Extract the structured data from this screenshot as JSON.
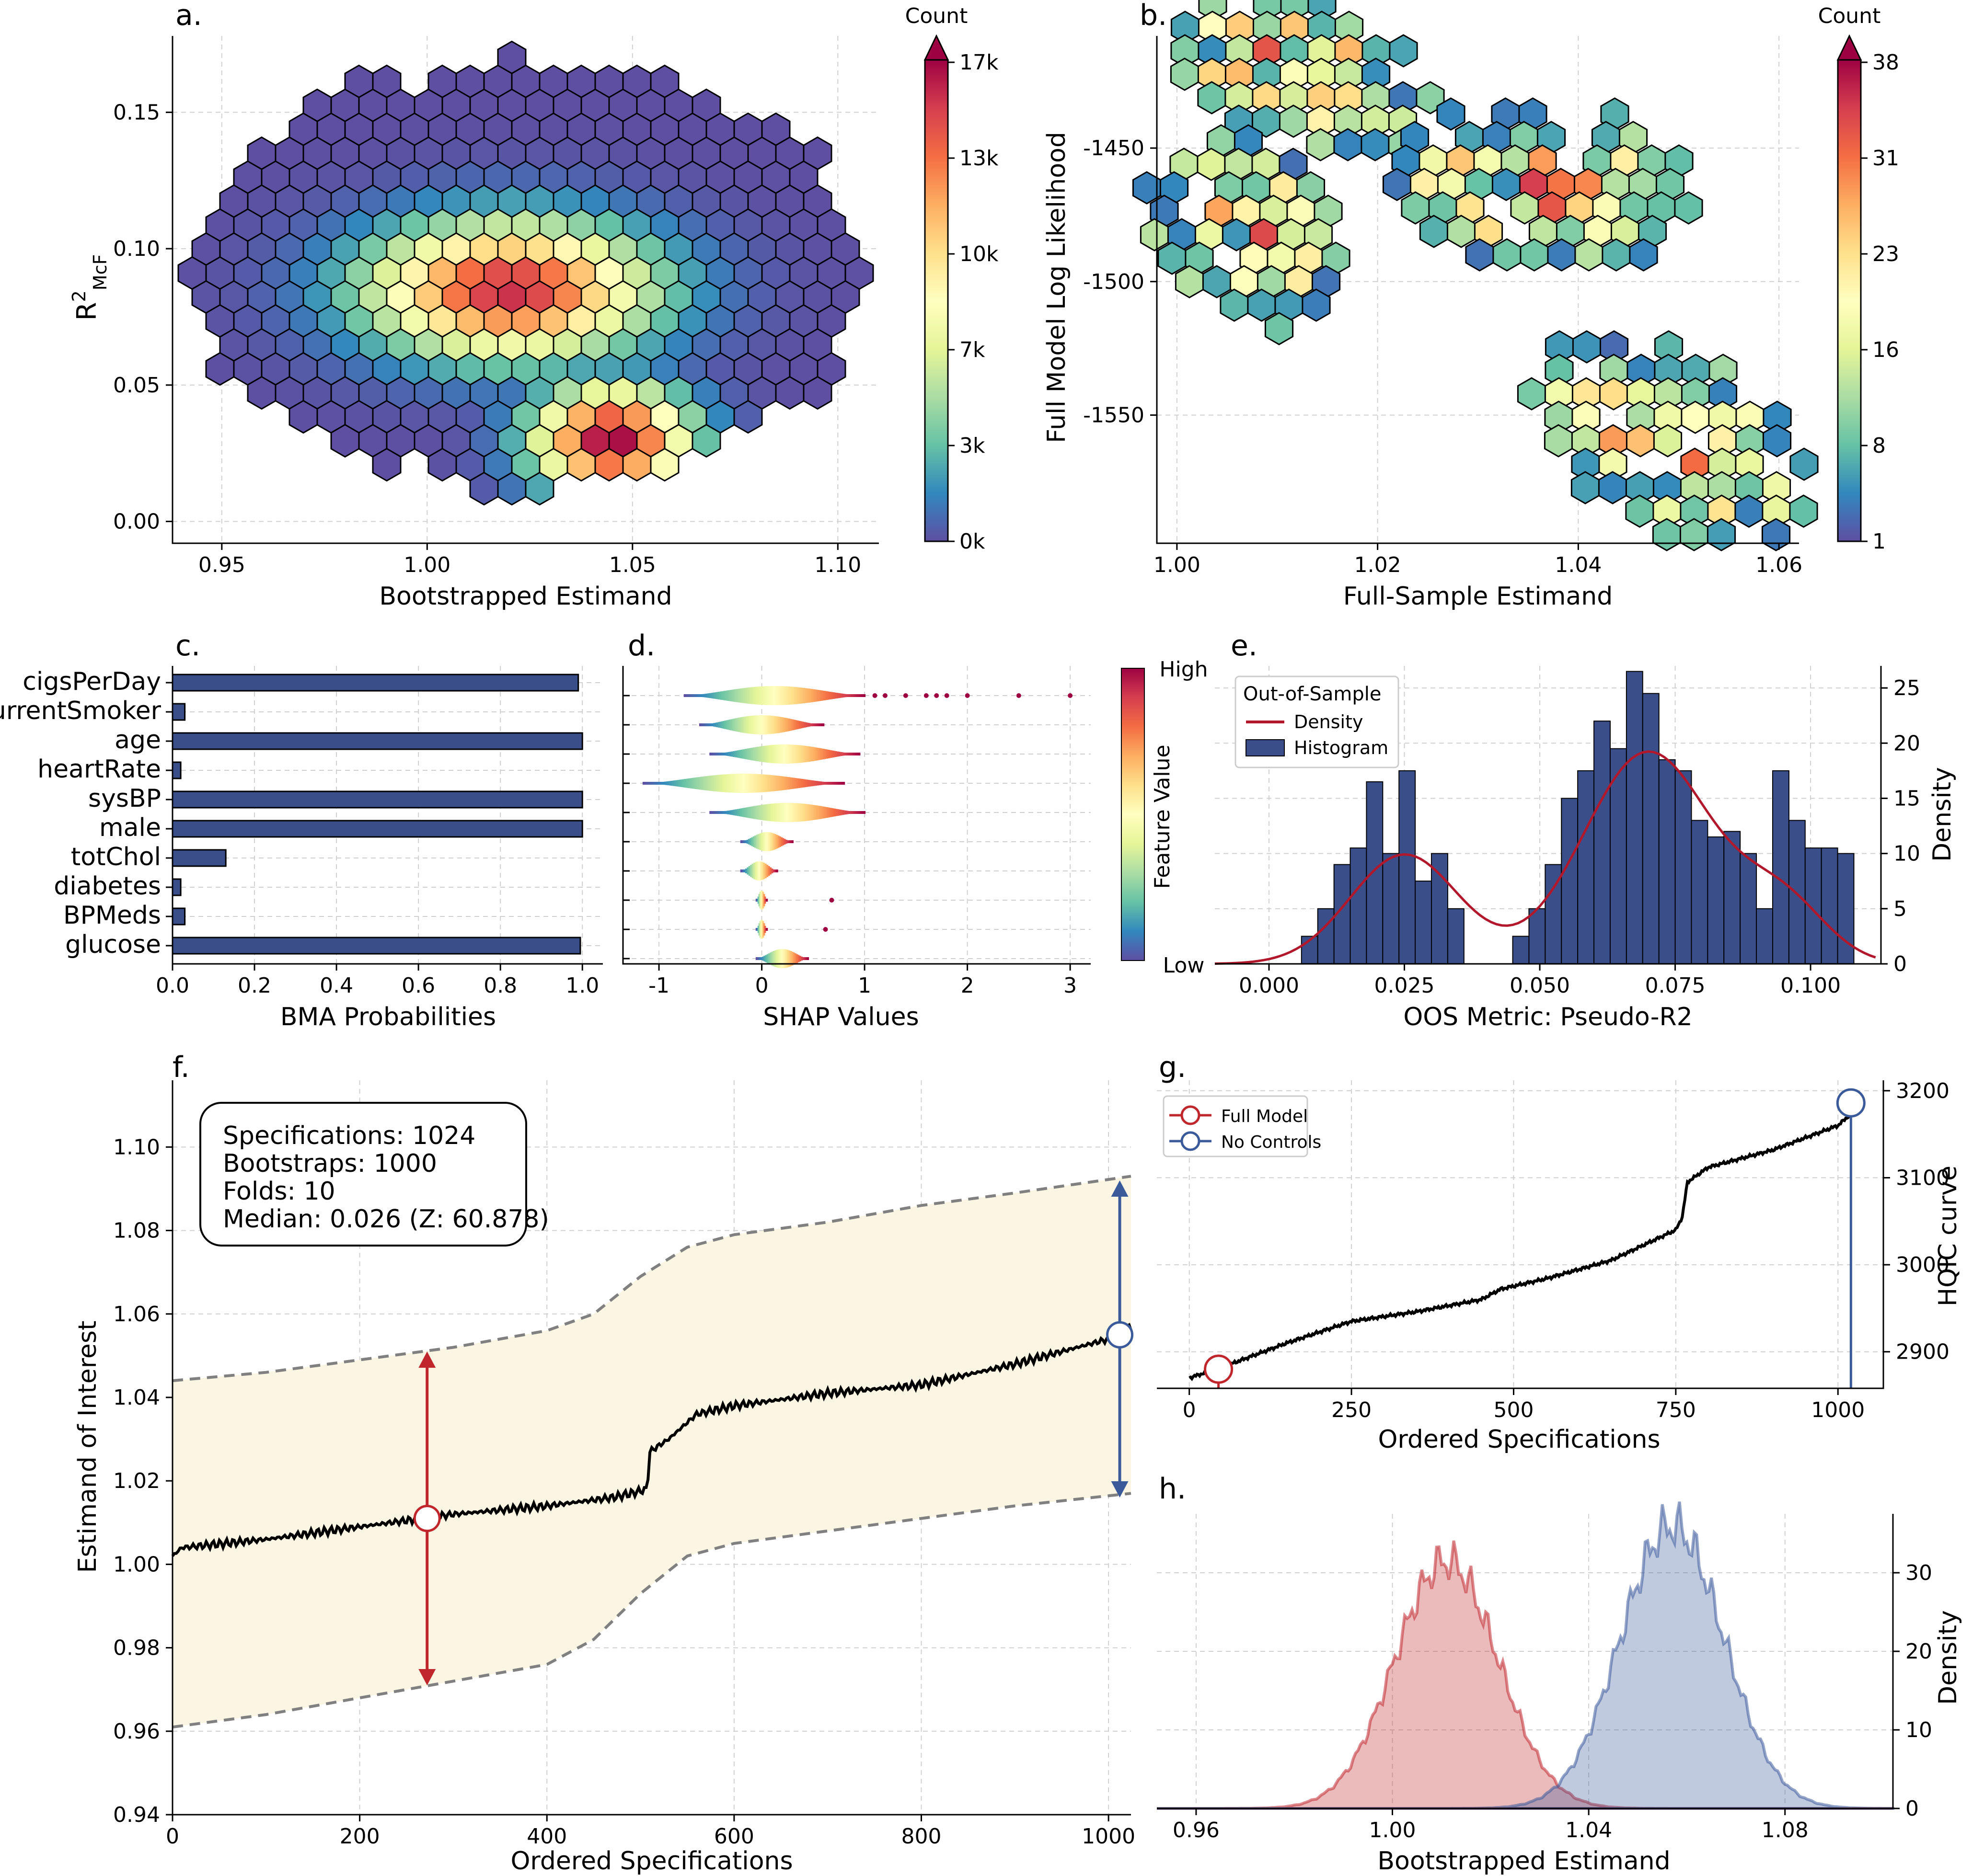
{
  "colors": {
    "bar": "#3a4f8a",
    "density_line": "#b2182b",
    "full_model": "#c0272d",
    "no_controls": "#3a5a9a",
    "band": "#fbf6e4",
    "spectral": [
      "#5e4fa2",
      "#3288bd",
      "#66c2a5",
      "#abdda4",
      "#e6f598",
      "#ffffbf",
      "#fee08b",
      "#fdae61",
      "#f46d43",
      "#d53e4f",
      "#9e0142"
    ]
  },
  "chart_data": [
    {
      "panel": "a.",
      "type": "heatmap",
      "xlabel": "Bootstrapped Estimand",
      "ylabel": "R²McF",
      "xticks": [
        "0.95",
        "1.00",
        "1.05",
        "1.10"
      ],
      "yticks": [
        "0.00",
        "0.05",
        "0.10",
        "0.15"
      ],
      "xlim": [
        0.938,
        1.11
      ],
      "ylim": [
        -0.008,
        0.178
      ],
      "colorbar_title": "Count",
      "colorbar_ticks": [
        "0k",
        "3k",
        "7k",
        "10k",
        "13k",
        "17k"
      ],
      "colorbar_max": 17000,
      "description_centers": [
        [
          1.045,
          0.03
        ],
        [
          1.02,
          0.085
        ]
      ]
    },
    {
      "panel": "b.",
      "type": "heatmap",
      "xlabel": "Full-Sample Estimand",
      "ylabel": "Full Model Log Likelihood",
      "xticks": [
        "1.00",
        "1.02",
        "1.04",
        "1.06"
      ],
      "yticks": [
        "-1450",
        "-1500",
        "-1550"
      ],
      "xlim": [
        0.998,
        1.062
      ],
      "ylim": [
        -1598,
        -1408
      ],
      "colorbar_title": "Count",
      "colorbar_ticks": [
        "1",
        "8",
        "16",
        "23",
        "31",
        "38"
      ],
      "colorbar_max": 38
    },
    {
      "panel": "c.",
      "type": "bar",
      "orientation": "horizontal",
      "xlabel": "BMA Probabilities",
      "categories": [
        "cigsPerDay",
        "currentSmoker",
        "age",
        "heartRate",
        "sysBP",
        "male",
        "totChol",
        "diabetes",
        "BPMeds",
        "glucose"
      ],
      "values": [
        0.99,
        0.03,
        1.0,
        0.02,
        1.0,
        1.0,
        0.13,
        0.02,
        0.03,
        0.995
      ],
      "xticks": [
        "0.0",
        "0.2",
        "0.4",
        "0.6",
        "0.8",
        "1.0"
      ],
      "xlim": [
        0,
        1.05
      ]
    },
    {
      "panel": "d.",
      "type": "scatter",
      "xlabel": "SHAP Values",
      "xticks": [
        "-1",
        "0",
        "1",
        "2",
        "3"
      ],
      "xlim": [
        -1.35,
        3.2
      ],
      "colorbar_label": "Feature Value",
      "colorbar_high": "High",
      "colorbar_low": "Low",
      "rows": [
        {
          "min": -0.75,
          "max": 1.0,
          "outliers": [
            1.1,
            1.2,
            1.4,
            1.6,
            1.7,
            1.8,
            2.0,
            2.5,
            3.0
          ]
        },
        {
          "min": -0.6,
          "max": 0.6,
          "outliers": []
        },
        {
          "min": -0.5,
          "max": 0.95,
          "outliers": []
        },
        {
          "min": -1.15,
          "max": 0.8,
          "outliers": []
        },
        {
          "min": -0.5,
          "max": 1.0,
          "outliers": []
        },
        {
          "min": -0.2,
          "max": 0.3,
          "outliers": []
        },
        {
          "min": -0.2,
          "max": 0.15,
          "outliers": []
        },
        {
          "min": -0.05,
          "max": 0.05,
          "outliers": [
            0.68
          ]
        },
        {
          "min": -0.05,
          "max": 0.05,
          "outliers": [
            0.62
          ]
        },
        {
          "min": -0.05,
          "max": 0.45,
          "outliers": []
        }
      ]
    },
    {
      "panel": "e.",
      "type": "bar",
      "xlabel": "OOS Metric: Pseudo-R2",
      "ylabel": "Density",
      "legend_title": "Out-of-Sample",
      "legend": [
        "Density",
        "Histogram"
      ],
      "xticks": [
        "0.000",
        "0.025",
        "0.050",
        "0.075",
        "0.100"
      ],
      "yticks": [
        "0",
        "5",
        "10",
        "15",
        "20",
        "25"
      ],
      "xlim": [
        -0.01,
        0.113
      ],
      "ylim": [
        0,
        27
      ],
      "bin_start": 0.006,
      "bin_width": 0.003,
      "values": [
        2.5,
        5,
        9,
        10.5,
        16.5,
        10,
        17.5,
        7.5,
        10,
        5,
        0,
        0,
        0,
        2.5,
        5,
        9,
        15,
        17.5,
        22,
        19.5,
        26.5,
        24.5,
        18.5,
        17.5,
        13,
        11.5,
        12,
        10,
        5,
        17.5,
        13,
        10.5,
        10.5,
        10
      ]
    },
    {
      "panel": "f.",
      "type": "line",
      "xlabel": "Ordered Specifications",
      "ylabel": "Estimand of Interest",
      "xticks": [
        "0",
        "200",
        "400",
        "600",
        "800",
        "1000"
      ],
      "yticks": [
        "0.94",
        "0.96",
        "0.98",
        "1.00",
        "1.02",
        "1.04",
        "1.06",
        "1.08",
        "1.10"
      ],
      "xlim": [
        0,
        1024
      ],
      "ylim": [
        0.94,
        1.116
      ],
      "median_curve": [
        [
          0,
          1.002
        ],
        [
          10,
          1.004
        ],
        [
          100,
          1.006
        ],
        [
          200,
          1.009
        ],
        [
          300,
          1.012
        ],
        [
          400,
          1.014
        ],
        [
          470,
          1.016
        ],
        [
          490,
          1.017
        ],
        [
          507,
          1.018
        ],
        [
          510,
          1.027
        ],
        [
          530,
          1.03
        ],
        [
          560,
          1.036
        ],
        [
          600,
          1.038
        ],
        [
          700,
          1.041
        ],
        [
          800,
          1.043
        ],
        [
          900,
          1.048
        ],
        [
          1000,
          1.054
        ],
        [
          1024,
          1.057
        ]
      ],
      "upper_band": [
        [
          0,
          1.044
        ],
        [
          100,
          1.046
        ],
        [
          200,
          1.049
        ],
        [
          300,
          1.052
        ],
        [
          400,
          1.056
        ],
        [
          450,
          1.06
        ],
        [
          500,
          1.069
        ],
        [
          550,
          1.076
        ],
        [
          600,
          1.079
        ],
        [
          700,
          1.082
        ],
        [
          800,
          1.086
        ],
        [
          900,
          1.089
        ],
        [
          1024,
          1.093
        ]
      ],
      "lower_band": [
        [
          0,
          0.961
        ],
        [
          100,
          0.964
        ],
        [
          200,
          0.968
        ],
        [
          300,
          0.972
        ],
        [
          400,
          0.976
        ],
        [
          450,
          0.982
        ],
        [
          500,
          0.993
        ],
        [
          550,
          1.002
        ],
        [
          600,
          1.005
        ],
        [
          700,
          1.008
        ],
        [
          800,
          1.011
        ],
        [
          900,
          1.014
        ],
        [
          1024,
          1.017
        ]
      ],
      "full_model": {
        "x": 272,
        "y": 1.011,
        "upper": 1.051,
        "lower": 0.971
      },
      "no_controls": {
        "x": 1012,
        "y": 1.055,
        "upper": 1.092,
        "lower": 1.016
      }
    },
    {
      "panel": "g.",
      "type": "line",
      "xlabel": "Ordered Specifications",
      "ylabel": "HQIC curve",
      "legend": [
        "Full Model",
        "No Controls"
      ],
      "xticks": [
        "0",
        "250",
        "500",
        "750",
        "1000"
      ],
      "yticks": [
        "2900",
        "3000",
        "3100",
        "3200"
      ],
      "xlim": [
        -50,
        1070
      ],
      "ylim": [
        2858,
        3212
      ],
      "curve": [
        [
          0,
          2870
        ],
        [
          50,
          2882
        ],
        [
          150,
          2910
        ],
        [
          250,
          2935
        ],
        [
          350,
          2946
        ],
        [
          450,
          2960
        ],
        [
          470,
          2968
        ],
        [
          480,
          2972
        ],
        [
          550,
          2984
        ],
        [
          650,
          3005
        ],
        [
          750,
          3040
        ],
        [
          760,
          3055
        ],
        [
          768,
          3095
        ],
        [
          800,
          3112
        ],
        [
          900,
          3132
        ],
        [
          1000,
          3160
        ],
        [
          1024,
          3176
        ]
      ],
      "full_model": {
        "x": 45,
        "y": 2880
      },
      "no_controls": {
        "x": 1020,
        "y": 3186
      }
    },
    {
      "panel": "h.",
      "type": "area",
      "xlabel": "Bootstrapped Estimand",
      "ylabel": "Density",
      "xticks": [
        "0.96",
        "1.00",
        "1.04",
        "1.08"
      ],
      "yticks": [
        "0",
        "10",
        "20",
        "30"
      ],
      "xlim": [
        0.952,
        1.102
      ],
      "ylim": [
        0,
        37.5
      ],
      "series": [
        {
          "name": "Full Model",
          "mean": 1.011,
          "sd": 0.0105,
          "peak": 31.5
        },
        {
          "name": "No Controls",
          "mean": 1.057,
          "sd": 0.0105,
          "peak": 36
        }
      ]
    }
  ],
  "annotation_box": {
    "line1": "Specifications: 1024",
    "line2": "Bootstraps: 1000",
    "line3": "Folds: 10",
    "line4": "Median: 0.026 (Z: 60.878)"
  }
}
